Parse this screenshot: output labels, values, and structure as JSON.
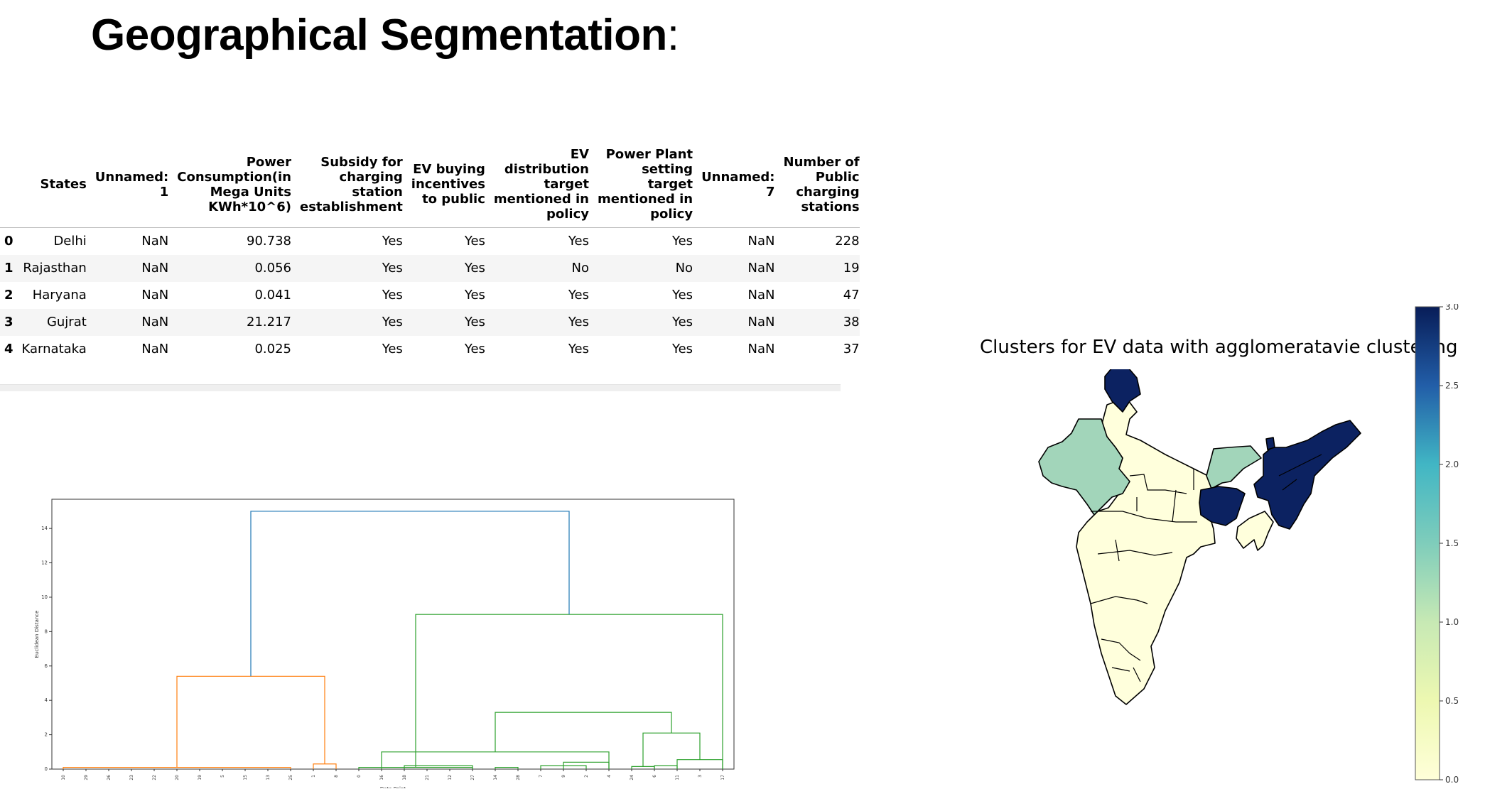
{
  "slide": {
    "title": "Geographical Segmentation",
    "title_suffix": ":"
  },
  "table": {
    "columns": [
      {
        "lines": [
          "States"
        ]
      },
      {
        "lines": [
          "Unnamed:",
          "1"
        ]
      },
      {
        "lines": [
          "Power",
          "Consumption(in",
          "Mega Units",
          "KWh*10^6)"
        ]
      },
      {
        "lines": [
          "Subsidy for",
          "charging",
          "station",
          "establishment"
        ]
      },
      {
        "lines": [
          "EV buying",
          "incentives",
          "to public"
        ]
      },
      {
        "lines": [
          "EV",
          "distribution",
          "target",
          "mentioned in",
          "policy"
        ]
      },
      {
        "lines": [
          "Power Plant",
          "setting",
          "target",
          "mentioned in",
          "policy"
        ]
      },
      {
        "lines": [
          "Unnamed:",
          "7"
        ]
      },
      {
        "lines": [
          "Number of",
          "Public",
          "charging",
          "stations"
        ]
      }
    ],
    "rows": [
      {
        "index": "0",
        "cells": [
          "Delhi",
          "NaN",
          "90.738",
          "Yes",
          "Yes",
          "Yes",
          "Yes",
          "NaN",
          "228"
        ]
      },
      {
        "index": "1",
        "cells": [
          "Rajasthan",
          "NaN",
          "0.056",
          "Yes",
          "Yes",
          "No",
          "No",
          "NaN",
          "19"
        ]
      },
      {
        "index": "2",
        "cells": [
          "Haryana",
          "NaN",
          "0.041",
          "Yes",
          "Yes",
          "Yes",
          "Yes",
          "NaN",
          "47"
        ]
      },
      {
        "index": "3",
        "cells": [
          "Gujrat",
          "NaN",
          "21.217",
          "Yes",
          "Yes",
          "Yes",
          "Yes",
          "NaN",
          "38"
        ]
      },
      {
        "index": "4",
        "cells": [
          "Karnataka",
          "NaN",
          "0.025",
          "Yes",
          "Yes",
          "Yes",
          "Yes",
          "NaN",
          "37"
        ]
      }
    ]
  },
  "dendrogram": {
    "xlabel": "Data Point",
    "ylabel": "Euclidean Distance",
    "yticks": [
      "0",
      "2",
      "4",
      "6",
      "8",
      "10",
      "12",
      "14"
    ],
    "leaves": [
      "10",
      "29",
      "26",
      "23",
      "22",
      "20",
      "19",
      "5",
      "15",
      "13",
      "25",
      "1",
      "8",
      "0",
      "16",
      "18",
      "21",
      "12",
      "27",
      "14",
      "28",
      "7",
      "9",
      "2",
      "4",
      "24",
      "6",
      "11",
      "3",
      "17"
    ],
    "colors": {
      "left_cluster": "#ff7f0e",
      "right_cluster": "#2ca02c",
      "top_link": "#1f77b4"
    },
    "merges": [
      {
        "leaves": [
          0,
          10
        ],
        "height": 0.1,
        "cluster": "left_cluster"
      },
      {
        "leaves": [
          11,
          12
        ],
        "height": 0.3,
        "cluster": "left_cluster"
      },
      {
        "leaves": [
          0,
          12
        ],
        "height": 5.4,
        "cluster": "left_cluster"
      },
      {
        "leaves": [
          13,
          18
        ],
        "height": 0.1,
        "cluster": "right_cluster"
      },
      {
        "leaves": [
          15,
          18
        ],
        "height": 0.2,
        "cluster": "right_cluster"
      },
      {
        "leaves": [
          19,
          20
        ],
        "height": 0.1,
        "cluster": "right_cluster"
      },
      {
        "leaves": [
          21,
          23
        ],
        "height": 0.2,
        "cluster": "right_cluster"
      },
      {
        "leaves": [
          22,
          24
        ],
        "height": 0.4,
        "cluster": "right_cluster"
      },
      {
        "leaves": [
          14,
          24
        ],
        "height": 1.0,
        "cluster": "right_cluster"
      },
      {
        "leaves": [
          25,
          26
        ],
        "height": 0.15,
        "cluster": "right_cluster"
      },
      {
        "leaves": [
          26,
          27
        ],
        "height": 0.2,
        "cluster": "right_cluster"
      },
      {
        "leaves": [
          27,
          29
        ],
        "height": 0.55,
        "cluster": "right_cluster"
      },
      {
        "leaves": [
          25,
          29
        ],
        "height": 2.1,
        "cluster": "right_cluster"
      },
      {
        "leaves": [
          14,
          29
        ],
        "height": 3.3,
        "cluster": "right_cluster"
      },
      {
        "leaves": [
          13,
          29
        ],
        "height": 9.0,
        "cluster": "right_cluster"
      },
      {
        "leaves": [
          0,
          29
        ],
        "height": 15.0,
        "cluster": "top_link"
      }
    ]
  },
  "cluster_map": {
    "title": "Clusters for EV data with agglomeratavie clustering",
    "colorbar_ticks": [
      "0.0",
      "0.5",
      "1.0",
      "1.5",
      "2.0",
      "2.5",
      "3.0"
    ],
    "colors": {
      "cluster_0": "#ffffdc",
      "cluster_1": "#a2d5ba",
      "cluster_3": "#0c2261",
      "border": "#000000"
    }
  }
}
